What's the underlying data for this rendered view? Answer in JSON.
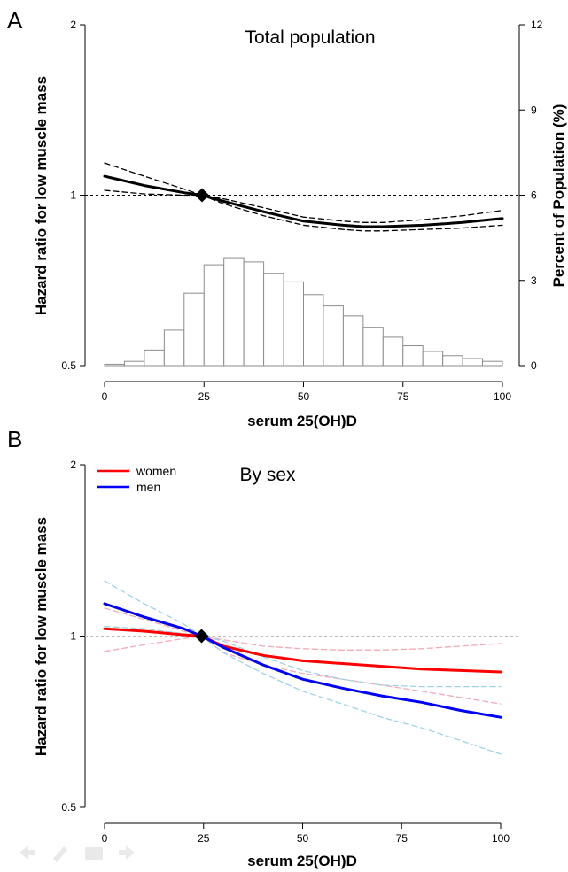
{
  "chart_data": [
    {
      "panel": "A",
      "type": "line",
      "title": "Total population",
      "xlabel": "serum 25(OH)D",
      "ylabel": "Hazard ratio for low muscle mass",
      "y2label": "Percent of Population (%)",
      "xlim": [
        0,
        100
      ],
      "ylim": [
        0.5,
        2
      ],
      "y_scale": "log",
      "y2lim": [
        0,
        12
      ],
      "x_ticks": [
        "0",
        "25",
        "50",
        "75",
        "100"
      ],
      "y_ticks": [
        "0.5",
        "1",
        "2"
      ],
      "y2_ticks": [
        "0",
        "3",
        "6",
        "9",
        "12"
      ],
      "reference_line": 1,
      "reference_point": {
        "x": 24.5,
        "y": 1
      },
      "x": [
        0,
        10,
        20,
        24.5,
        30,
        40,
        50,
        60,
        65,
        70,
        80,
        90,
        100
      ],
      "series": [
        {
          "role": "estimate",
          "color": "#000000",
          "style": "solid",
          "values": [
            1.08,
            1.04,
            1.01,
            1.0,
            0.975,
            0.935,
            0.9,
            0.885,
            0.88,
            0.88,
            0.885,
            0.895,
            0.91
          ]
        },
        {
          "role": "upper-ci",
          "color": "#000000",
          "style": "dashed",
          "values": [
            1.14,
            1.08,
            1.025,
            1.0,
            0.985,
            0.95,
            0.915,
            0.9,
            0.895,
            0.895,
            0.905,
            0.92,
            0.94
          ]
        },
        {
          "role": "lower-ci",
          "color": "#000000",
          "style": "dashed",
          "values": [
            1.02,
            1.005,
            1.0,
            1.0,
            0.965,
            0.92,
            0.885,
            0.87,
            0.865,
            0.865,
            0.87,
            0.875,
            0.885
          ]
        }
      ],
      "histogram": {
        "bin_starts": [
          0,
          5,
          10,
          15,
          20,
          25,
          30,
          35,
          40,
          45,
          50,
          55,
          60,
          65,
          70,
          75,
          80,
          85,
          90,
          95
        ],
        "bin_width": 5,
        "percent": [
          0.05,
          0.15,
          0.55,
          1.25,
          2.55,
          3.55,
          3.8,
          3.65,
          3.25,
          2.95,
          2.5,
          2.1,
          1.75,
          1.35,
          1.0,
          0.7,
          0.5,
          0.35,
          0.25,
          0.15
        ]
      }
    },
    {
      "panel": "B",
      "type": "line",
      "title": "By sex",
      "xlabel": "serum 25(OH)D",
      "ylabel": "Hazard ratio for low muscle mass",
      "xlim": [
        0,
        100
      ],
      "ylim": [
        0.5,
        2
      ],
      "y_scale": "log",
      "x_ticks": [
        "0",
        "25",
        "50",
        "75",
        "100"
      ],
      "y_ticks": [
        "0.5",
        "1",
        "2"
      ],
      "reference_line": 1,
      "reference_point": {
        "x": 24.5,
        "y": 1
      },
      "legend": {
        "position": "top-left",
        "entries": [
          "women",
          "men"
        ]
      },
      "x": [
        0,
        10,
        20,
        24.5,
        30,
        40,
        50,
        60,
        70,
        80,
        90,
        100
      ],
      "series": [
        {
          "name": "women",
          "role": "estimate",
          "color": "#ff0000",
          "style": "solid",
          "values": [
            1.03,
            1.02,
            1.005,
            1.0,
            0.96,
            0.925,
            0.905,
            0.895,
            0.885,
            0.875,
            0.87,
            0.865
          ]
        },
        {
          "role": "women-upper-ci",
          "color": "#f4a9b8",
          "style": "dashed",
          "values": [
            1.12,
            1.07,
            1.02,
            1.0,
            0.985,
            0.96,
            0.95,
            0.945,
            0.945,
            0.95,
            0.96,
            0.97
          ]
        },
        {
          "role": "women-lower-ci",
          "color": "#f4a9b8",
          "style": "dashed",
          "values": [
            0.94,
            0.965,
            0.99,
            1.0,
            0.935,
            0.89,
            0.86,
            0.84,
            0.82,
            0.8,
            0.78,
            0.76
          ]
        },
        {
          "name": "men",
          "role": "estimate",
          "color": "#0000ff",
          "style": "solid",
          "values": [
            1.14,
            1.08,
            1.03,
            1.0,
            0.955,
            0.89,
            0.84,
            0.81,
            0.785,
            0.765,
            0.74,
            0.72
          ]
        },
        {
          "role": "men-upper-ci",
          "color": "#9ed3e6",
          "style": "dashed",
          "values": [
            1.25,
            1.14,
            1.05,
            1.0,
            0.98,
            0.92,
            0.87,
            0.84,
            0.82,
            0.815,
            0.815,
            0.815
          ]
        },
        {
          "role": "men-lower-ci",
          "color": "#9ed3e6",
          "style": "dashed",
          "values": [
            1.04,
            1.03,
            1.01,
            1.0,
            0.935,
            0.86,
            0.8,
            0.76,
            0.72,
            0.69,
            0.655,
            0.62
          ]
        }
      ]
    }
  ]
}
